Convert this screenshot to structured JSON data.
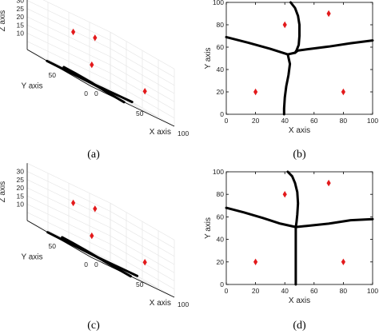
{
  "chart_data": [
    {
      "id": "a",
      "caption": "(a)",
      "type": "scatter",
      "view": "3d",
      "xlabel": "X axis",
      "ylabel": "Y axis",
      "zlabel": "Z axis",
      "xlim": [
        0,
        100
      ],
      "ylim": [
        0,
        100
      ],
      "zlim": [
        0,
        35
      ],
      "x_ticks": [
        "0",
        "50",
        "100"
      ],
      "y_ticks": [
        "0",
        "50"
      ],
      "z_ticks": [
        "10",
        "15",
        "20",
        "25",
        "30"
      ],
      "points": [
        {
          "x": 20,
          "y": 20,
          "z": 30
        },
        {
          "x": 40,
          "y": 80,
          "z": 25
        },
        {
          "x": 70,
          "y": 90,
          "z": 10
        },
        {
          "x": 80,
          "y": 20,
          "z": 12
        }
      ],
      "marker_color": "#e31a1c",
      "grid": true
    },
    {
      "id": "b",
      "caption": "(b)",
      "type": "scatter",
      "view": "2d",
      "xlabel": "X axis",
      "ylabel": "Y axis",
      "xlim": [
        0,
        100
      ],
      "ylim": [
        0,
        100
      ],
      "x_ticks": [
        "0",
        "20",
        "40",
        "60",
        "80",
        "100"
      ],
      "y_ticks": [
        "0",
        "20",
        "40",
        "60",
        "80",
        "100"
      ],
      "points": [
        {
          "x": 20,
          "y": 20
        },
        {
          "x": 40,
          "y": 80
        },
        {
          "x": 70,
          "y": 90
        },
        {
          "x": 80,
          "y": 20
        }
      ],
      "boundaries": [
        [
          [
            44,
            100
          ],
          [
            47,
            95
          ],
          [
            49,
            88
          ],
          [
            50,
            80
          ],
          [
            50,
            70
          ],
          [
            49.5,
            62
          ],
          [
            48,
            57
          ],
          [
            47,
            55
          ]
        ],
        [
          [
            0,
            69
          ],
          [
            15,
            64
          ],
          [
            30,
            58.5
          ],
          [
            42,
            53.5
          ],
          [
            47,
            55
          ]
        ],
        [
          [
            47,
            55
          ],
          [
            49,
            57
          ],
          [
            55,
            58
          ],
          [
            70,
            60.5
          ],
          [
            85,
            63.5
          ],
          [
            100,
            66
          ]
        ],
        [
          [
            42,
            53.5
          ],
          [
            43.5,
            45
          ],
          [
            42.5,
            35
          ],
          [
            41,
            25
          ],
          [
            40,
            15
          ],
          [
            39.5,
            5
          ],
          [
            39.5,
            0
          ]
        ]
      ],
      "marker_color": "#e31a1c"
    },
    {
      "id": "c",
      "caption": "(c)",
      "type": "scatter",
      "view": "3d",
      "xlabel": "X axis",
      "ylabel": "Y axis",
      "zlabel": "Z axis",
      "xlim": [
        0,
        100
      ],
      "ylim": [
        0,
        100
      ],
      "zlim": [
        0,
        35
      ],
      "x_ticks": [
        "0",
        "50",
        "100"
      ],
      "y_ticks": [
        "0",
        "50"
      ],
      "z_ticks": [
        "10",
        "15",
        "20",
        "25",
        "30"
      ],
      "points": [
        {
          "x": 20,
          "y": 20,
          "z": 30
        },
        {
          "x": 40,
          "y": 80,
          "z": 25
        },
        {
          "x": 70,
          "y": 90,
          "z": 10
        },
        {
          "x": 80,
          "y": 20,
          "z": 12
        }
      ],
      "marker_color": "#e31a1c",
      "grid": true
    },
    {
      "id": "d",
      "caption": "(d)",
      "type": "scatter",
      "view": "2d",
      "xlabel": "X axis",
      "ylabel": "Y axis",
      "xlim": [
        0,
        100
      ],
      "ylim": [
        0,
        100
      ],
      "x_ticks": [
        "0",
        "20",
        "40",
        "60",
        "80",
        "100"
      ],
      "y_ticks": [
        "0",
        "20",
        "40",
        "60",
        "80",
        "100"
      ],
      "points": [
        {
          "x": 20,
          "y": 20
        },
        {
          "x": 40,
          "y": 80
        },
        {
          "x": 70,
          "y": 90
        },
        {
          "x": 80,
          "y": 20
        }
      ],
      "boundaries": [
        [
          [
            42,
            100
          ],
          [
            45,
            96
          ],
          [
            47,
            90
          ],
          [
            48.5,
            82
          ],
          [
            49,
            72
          ],
          [
            48.5,
            62
          ],
          [
            48,
            55
          ],
          [
            47.5,
            51
          ]
        ],
        [
          [
            0,
            68
          ],
          [
            12,
            64
          ],
          [
            25,
            59
          ],
          [
            37,
            54
          ],
          [
            47.5,
            51
          ]
        ],
        [
          [
            47.5,
            51
          ],
          [
            55,
            52
          ],
          [
            70,
            54
          ],
          [
            85,
            57
          ],
          [
            100,
            58
          ]
        ],
        [
          [
            47.5,
            51
          ],
          [
            47.5,
            0
          ]
        ]
      ],
      "marker_color": "#e31a1c"
    }
  ]
}
